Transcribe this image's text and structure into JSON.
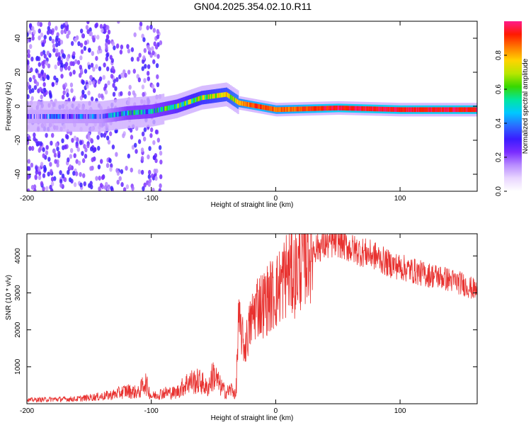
{
  "figure_title": "GN04.2025.354.02.10.R11",
  "colors": {
    "snr_line": "#e8312f",
    "colorscale": [
      "#ffffff",
      "#e9d6ff",
      "#b98cff",
      "#7a2cff",
      "#3a1cff",
      "#2a6cff",
      "#00c8ff",
      "#00e6a0",
      "#37d800",
      "#b8e600",
      "#ffd400",
      "#ff7a00",
      "#ff1a00",
      "#ff1a8a"
    ]
  },
  "chart_data": [
    {
      "type": "heatmap",
      "xlabel": "Height of straight line (km)",
      "ylabel": "Frequency (Hz)",
      "xlim": [
        -200,
        162
      ],
      "ylim": [
        -50,
        50
      ],
      "x_ticks": [
        "-200",
        "-100",
        "0",
        "100"
      ],
      "y_ticks": [
        "-40",
        "-20",
        "0",
        "20",
        "40"
      ],
      "colorbar": {
        "label": "Normalized spectral amplitude",
        "range": [
          0,
          1
        ],
        "ticks": [
          "0.0",
          "0.2",
          "0.4",
          "0.6",
          "0.8"
        ]
      },
      "ridge": {
        "description_points": [
          {
            "x": -200,
            "freq": -6,
            "amp": 0.25
          },
          {
            "x": -140,
            "freq": -6,
            "amp": 0.3
          },
          {
            "x": -120,
            "freq": -4,
            "amp": 0.45
          },
          {
            "x": -100,
            "freq": -3,
            "amp": 0.45
          },
          {
            "x": -80,
            "freq": 0,
            "amp": 0.55
          },
          {
            "x": -60,
            "freq": 5,
            "amp": 0.65
          },
          {
            "x": -40,
            "freq": 7,
            "amp": 0.7
          },
          {
            "x": -30,
            "freq": 2,
            "amp": 0.8
          },
          {
            "x": -15,
            "freq": 0,
            "amp": 0.9
          },
          {
            "x": 0,
            "freq": -2,
            "amp": 0.85
          },
          {
            "x": 50,
            "freq": -1,
            "amp": 0.95
          },
          {
            "x": 100,
            "freq": -2,
            "amp": 0.95
          },
          {
            "x": 162,
            "freq": -2,
            "amp": 0.95
          }
        ]
      }
    },
    {
      "type": "line",
      "xlabel": "Height of straight line (km)",
      "ylabel": "SNR (10 * v/v)",
      "xlim": [
        -200,
        162
      ],
      "ylim": [
        0,
        4600
      ],
      "x_ticks": [
        "-200",
        "-100",
        "0",
        "100"
      ],
      "y_ticks": [
        "1000",
        "2000",
        "3000",
        "4000"
      ],
      "series": [
        {
          "x": [
            -200,
            -180,
            -160,
            -140,
            -130,
            -120,
            -110,
            -105,
            -100,
            -90,
            -80,
            -70,
            -60,
            -55,
            -50,
            -45,
            -40,
            -35,
            -32,
            -30,
            -28,
            -25,
            -20,
            -15,
            -10,
            -5,
            0,
            5,
            10,
            15,
            20,
            25,
            30,
            40,
            50,
            60,
            70,
            80,
            90,
            100,
            110,
            120,
            130,
            140,
            150,
            162
          ],
          "y": [
            100,
            120,
            130,
            200,
            250,
            350,
            300,
            600,
            200,
            300,
            300,
            600,
            600,
            400,
            800,
            500,
            300,
            400,
            200,
            2200,
            2000,
            1500,
            2200,
            2700,
            2700,
            2900,
            3000,
            3300,
            3600,
            3500,
            3800,
            4100,
            4200,
            4300,
            4400,
            4200,
            4100,
            4000,
            3800,
            3700,
            3600,
            3500,
            3450,
            3350,
            3250,
            3050
          ]
        }
      ]
    }
  ]
}
